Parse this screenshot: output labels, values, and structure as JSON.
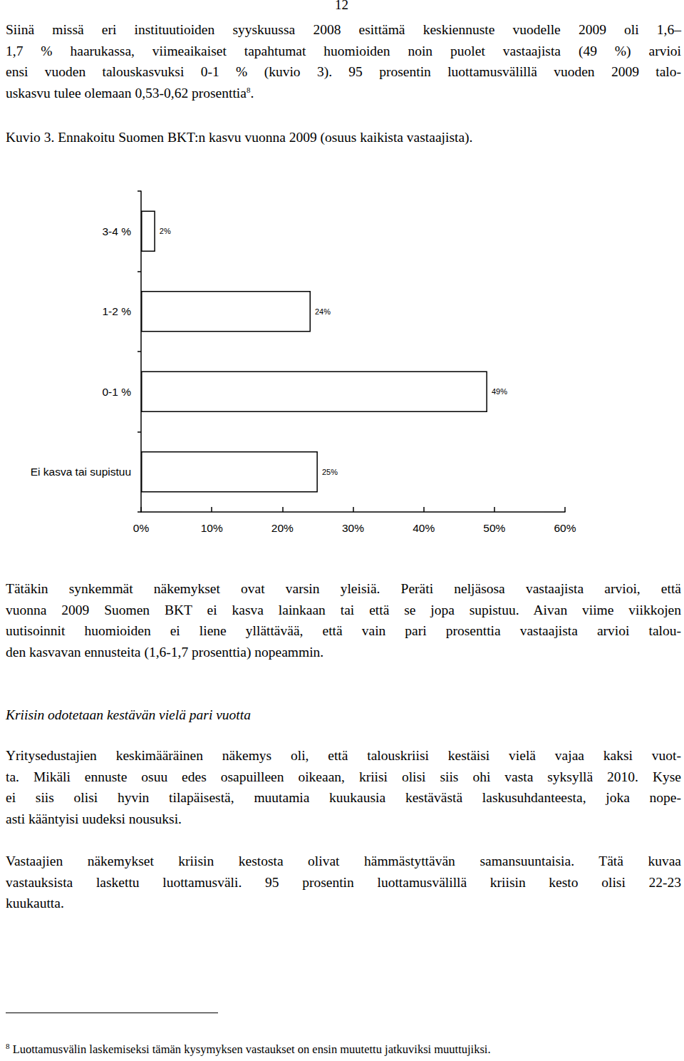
{
  "document": {
    "page_number": "12",
    "blocks": [
      {
        "kind": "paragraph",
        "lines": [
          "Siinä missä eri instituutioiden syyskuussa 2008 esittämä keskiennuste vuodelle 2009 oli 1,6–",
          "1,7 % haarukassa, viimeaikaiset tapahtumat huomioiden noin puolet vastaajista (49 %) arvioi",
          "ensi vuoden talouskasvuksi 0-1 % (kuvio 3). 95 prosentin luottamusvälillä vuoden 2009 talo-",
          {
            "text": "uskasvu tulee olemaan 0,53-0,62 prosenttia",
            "sup": "8",
            "after": "."
          }
        ]
      },
      {
        "kind": "caption",
        "lines": [
          "Kuvio 3. Ennakoitu Suomen BKT:n kasvu vuonna 2009 (osuus kaikista vastaajista)."
        ]
      },
      {
        "kind": "paragraph",
        "lines": [
          "Tätäkin synkemmät näkemykset ovat varsin yleisiä. Peräti neljäsosa vastaajista arvioi, että",
          "vuonna 2009 Suomen BKT ei kasva lainkaan tai että se jopa supistuu. Aivan viime viikkojen",
          "uutisoinnit huomioiden ei liene yllättävää, että vain pari prosenttia vastaajista arvioi talou-",
          "den kasvavan ennusteita (1,6-1,7 prosenttia) nopeammin."
        ]
      },
      {
        "kind": "heading",
        "lines": [
          "Kriisin odotetaan kestävän vielä pari vuotta"
        ]
      },
      {
        "kind": "paragraph",
        "lines": [
          "Yritysedustajien keskimääräinen näkemys oli, että talouskriisi kestäisi vielä vajaa kaksi vuot-",
          "ta. Mikäli ennuste osuu edes osapuilleen oikeaan, kriisi olisi siis ohi vasta syksyllä 2010. Kyse",
          "ei siis olisi hyvin tilapäisestä, muutamia kuukausia kestävästä laskusuhdanteesta, joka nope-",
          "asti kääntyisi uudeksi nousuksi."
        ]
      },
      {
        "kind": "paragraph",
        "lines": [
          "Vastaajien näkemykset kriisin kestosta olivat hämmästyttävän samansuuntaisia. Tätä kuvaa",
          "vastauksista laskettu luottamusväli. 95 prosentin luottamusvälillä kriisin kesto olisi 22-23",
          "kuukautta."
        ]
      }
    ],
    "footnote": {
      "mark": "8",
      "text": " Luottamusvälin laskemiseksi tämän kysymyksen vastaukset on ensin muutettu jatkuviksi muuttujiksi."
    }
  },
  "chart_data": {
    "type": "bar",
    "orientation": "horizontal",
    "categories": [
      "3-4 %",
      "1-2 %",
      "0-1 %",
      "Ei kasva tai supistuu"
    ],
    "values": [
      2,
      24,
      49,
      25
    ],
    "value_labels": [
      "2%",
      "24%",
      "49%",
      "25%"
    ],
    "data_labels": true,
    "color": "#ffffff",
    "xlim": [
      0,
      60
    ],
    "xticks": [
      {
        "value": 0,
        "label": "0%"
      },
      {
        "value": 10,
        "label": "10%"
      },
      {
        "value": 20,
        "label": "20%"
      },
      {
        "value": 30,
        "label": "30%"
      },
      {
        "value": 40,
        "label": "40%"
      },
      {
        "value": 50,
        "label": "50%"
      },
      {
        "value": 60,
        "label": "60%"
      }
    ],
    "grid": false
  }
}
